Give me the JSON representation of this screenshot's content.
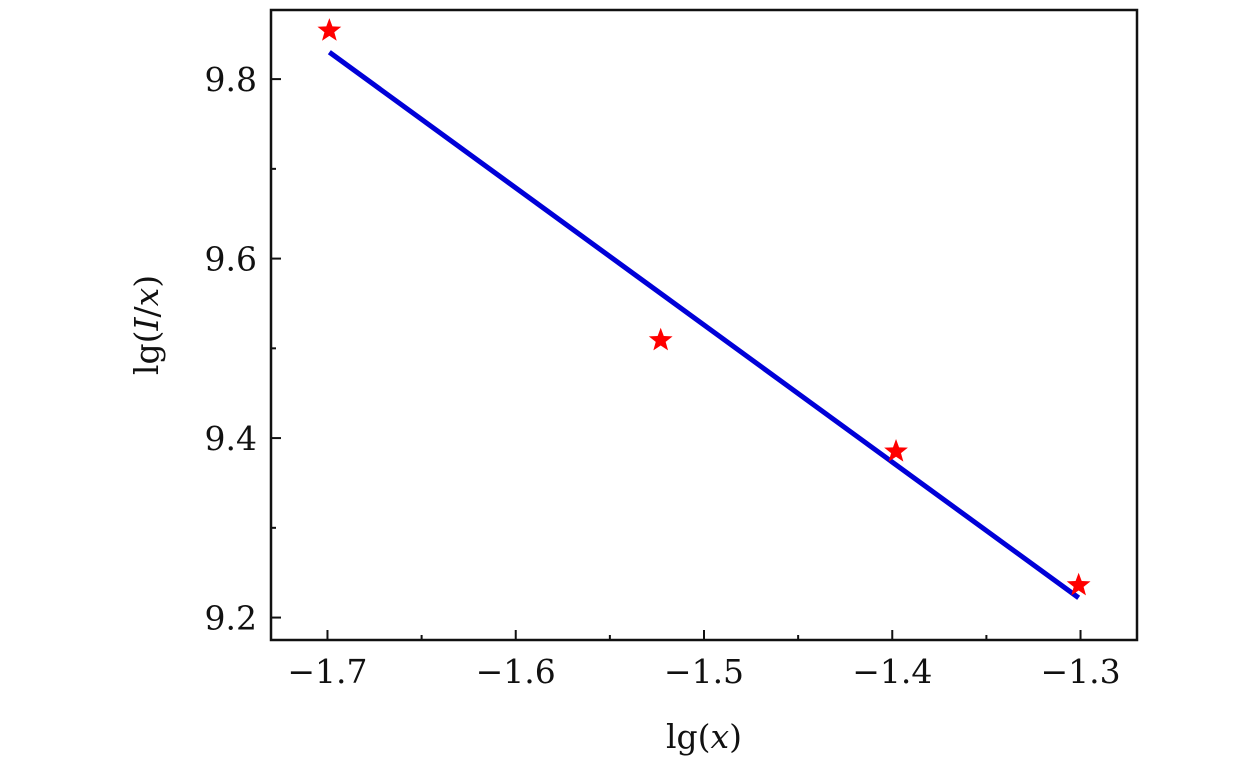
{
  "chart_data": {
    "type": "scatter",
    "xlabel": {
      "prefix": "lg(",
      "variable": "x",
      "suffix": ")"
    },
    "ylabel": {
      "prefix": "lg(",
      "variable_1": "I",
      "separator": "/",
      "variable_2": "x",
      "suffix": ")"
    },
    "xlim": [
      -1.73,
      -1.27
    ],
    "ylim": [
      9.175,
      9.877
    ],
    "x_ticks": [
      -1.7,
      -1.6,
      -1.5,
      -1.4,
      -1.3
    ],
    "x_tick_labels": [
      "−1.7",
      "−1.6",
      "−1.5",
      "−1.4",
      "−1.3"
    ],
    "x_minor_ticks": [
      -1.65,
      -1.55,
      -1.45,
      -1.35
    ],
    "y_ticks": [
      9.2,
      9.4,
      9.6,
      9.8
    ],
    "y_tick_labels": [
      "9.2",
      "9.4",
      "9.6",
      "9.8"
    ],
    "y_minor_ticks": [
      9.3,
      9.5,
      9.7
    ],
    "grid": false,
    "legend": "none",
    "series": [
      {
        "type": "scatter",
        "marker": "star",
        "color": "#ff0000",
        "points": [
          {
            "x": -1.699,
            "y": 9.854
          },
          {
            "x": -1.523,
            "y": 9.509
          },
          {
            "x": -1.398,
            "y": 9.385
          },
          {
            "x": -1.301,
            "y": 9.236
          }
        ]
      },
      {
        "type": "line",
        "color": "#0000d8",
        "points": [
          {
            "x": -1.699,
            "y": 9.83
          },
          {
            "x": -1.301,
            "y": 9.222
          }
        ]
      }
    ]
  }
}
